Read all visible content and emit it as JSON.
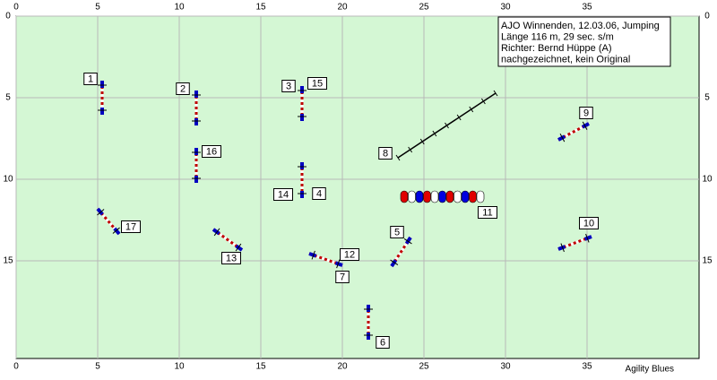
{
  "axes": {
    "x_ticks": [
      0,
      5,
      10,
      15,
      20,
      25,
      30,
      35
    ],
    "y_ticks": [
      0,
      5,
      10,
      15
    ]
  },
  "info": {
    "lines": [
      "AJO Winnenden, 12.03.06, Jumping",
      "Länge 116 m, 29 sec. s/m",
      "Richter: Bernd Hüppe (A)",
      "nachgezeichnet, kein Original"
    ]
  },
  "obstacle_labels": [
    "1",
    "2",
    "3",
    "15",
    "16",
    "14",
    "4",
    "17",
    "13",
    "12",
    "7",
    "5",
    "6",
    "8",
    "9",
    "10",
    "11"
  ],
  "footer": "Agility Blues"
}
